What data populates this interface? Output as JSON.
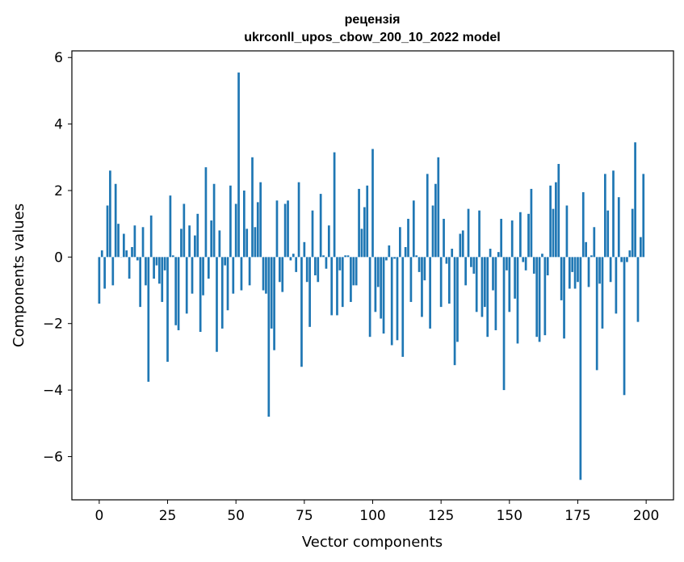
{
  "chart_data": {
    "type": "bar",
    "title": "рецензія",
    "subtitle": "ukrconll_upos_cbow_200_10_2022 model",
    "xlabel": "Vector components",
    "ylabel": "Components values",
    "xlim": [
      -10,
      210
    ],
    "ylim": [
      -7.3,
      6.2
    ],
    "x_ticks": [
      0,
      25,
      50,
      75,
      100,
      125,
      150,
      175,
      200
    ],
    "y_ticks": [
      6,
      4,
      2,
      0,
      -2,
      -4,
      -6
    ],
    "y_tick_labels": [
      "6",
      "4",
      "2",
      "0",
      "−2",
      "−4",
      "−6"
    ],
    "grid": false,
    "bar_color": "#1f77b4",
    "values": [
      -1.4,
      0.2,
      -0.95,
      1.55,
      2.6,
      -0.85,
      2.2,
      1.0,
      0.0,
      0.7,
      0.2,
      -0.65,
      0.3,
      0.95,
      -0.1,
      -1.5,
      0.9,
      -0.85,
      -3.75,
      1.25,
      -0.65,
      -0.25,
      -0.8,
      -1.35,
      -0.4,
      -3.15,
      1.85,
      0.05,
      -2.05,
      -2.2,
      0.85,
      1.6,
      -1.7,
      0.95,
      -1.1,
      0.65,
      1.3,
      -2.25,
      -1.15,
      2.7,
      -0.65,
      1.1,
      2.2,
      -2.85,
      0.8,
      -2.15,
      -0.25,
      -1.6,
      2.15,
      -1.1,
      1.6,
      5.55,
      -1.0,
      2.0,
      0.85,
      -0.85,
      3.0,
      0.9,
      1.65,
      2.25,
      -1.0,
      -1.1,
      -4.8,
      -2.15,
      -2.8,
      1.7,
      -0.75,
      -1.05,
      1.6,
      1.7,
      -0.1,
      0.1,
      -0.45,
      2.25,
      -3.3,
      0.45,
      -0.75,
      -2.1,
      1.4,
      -0.55,
      -0.75,
      1.9,
      0.05,
      -0.35,
      0.95,
      -1.75,
      3.15,
      -1.75,
      -0.4,
      -1.5,
      0.05,
      0.05,
      -1.35,
      -0.85,
      -0.85,
      2.05,
      0.85,
      1.5,
      2.15,
      -2.4,
      3.25,
      -1.65,
      -0.9,
      -1.85,
      -2.3,
      -0.1,
      0.35,
      -2.65,
      -0.05,
      -2.5,
      0.9,
      -3.0,
      0.3,
      1.15,
      -1.35,
      1.7,
      0.05,
      -0.45,
      -1.8,
      -0.7,
      2.5,
      -2.15,
      1.55,
      2.2,
      3.0,
      -1.5,
      1.15,
      -0.2,
      -1.4,
      0.25,
      -3.25,
      -2.55,
      0.7,
      0.8,
      -0.85,
      1.45,
      -0.3,
      -0.5,
      -1.65,
      1.4,
      -1.8,
      -1.5,
      -2.4,
      0.25,
      -1.0,
      -2.2,
      0.15,
      1.15,
      -4.0,
      -0.4,
      -1.65,
      1.1,
      -1.25,
      -2.6,
      1.35,
      -0.15,
      -0.4,
      1.3,
      2.05,
      -0.5,
      -2.4,
      -2.55,
      0.1,
      -2.35,
      -0.55,
      2.15,
      1.45,
      2.25,
      2.8,
      -1.3,
      -2.45,
      1.55,
      -0.95,
      -0.45,
      -0.95,
      -0.75,
      -6.7,
      1.95,
      0.45,
      -0.9,
      0.05,
      0.9,
      -3.4,
      -0.8,
      -2.15,
      2.5,
      1.4,
      -0.75,
      2.6,
      -1.7,
      1.8,
      -0.15,
      -4.15,
      -0.15,
      0.2,
      1.45,
      3.45,
      -1.95,
      0.6,
      2.5
    ]
  }
}
